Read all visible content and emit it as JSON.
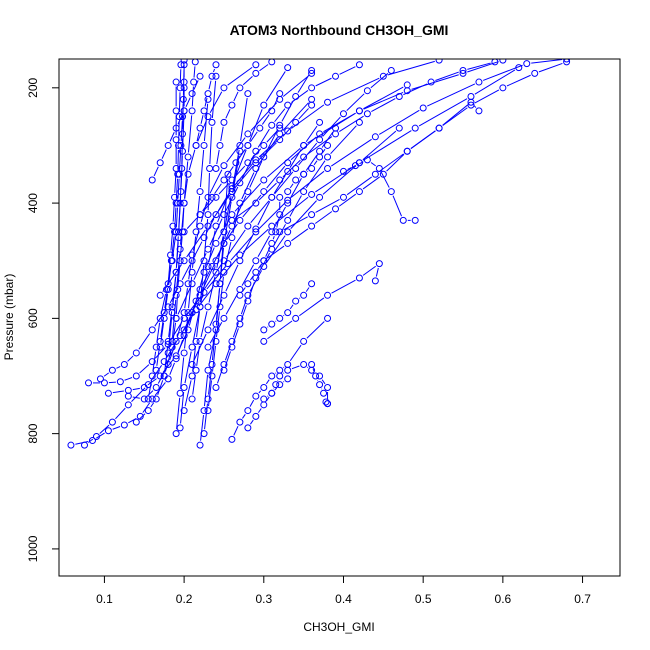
{
  "chart_data": {
    "type": "line",
    "title": "ATOM3 Northbound CH3OH_GMI",
    "xlabel": "CH3OH_GMI",
    "ylabel": "Pressure (mbar)",
    "xlim": [
      0.043,
      0.747
    ],
    "ylim": [
      1047,
      150
    ],
    "y_reversed": true,
    "grid": false,
    "x_ticks": [
      0.1,
      0.2,
      0.3,
      0.4,
      0.5,
      0.6,
      0.7
    ],
    "x_tick_labels": [
      "0.1",
      "0.2",
      "0.3",
      "0.4",
      "0.5",
      "0.6",
      "0.7"
    ],
    "y_ticks": [
      200,
      400,
      600,
      800,
      1000
    ],
    "y_tick_labels": [
      "200",
      "400",
      "600",
      "800",
      "1000"
    ],
    "series_color": "#0000ff",
    "series": [
      {
        "x": [
          0.058,
          0.085,
          0.105,
          0.125,
          0.145,
          0.16,
          0.18,
          0.19,
          0.2,
          0.21,
          0.22,
          0.235,
          0.25,
          0.27,
          0.3,
          0.33,
          0.37,
          0.42,
          0.48,
          0.55,
          0.6
        ],
        "y": [
          820,
          812,
          795,
          785,
          770,
          740,
          705,
          670,
          630,
          590,
          550,
          510,
          470,
          430,
          380,
          330,
          280,
          240,
          205,
          175,
          152
        ]
      },
      {
        "x": [
          0.075,
          0.09,
          0.11,
          0.13,
          0.155,
          0.175,
          0.195,
          0.215,
          0.24,
          0.27,
          0.31,
          0.36,
          0.42,
          0.49,
          0.56,
          0.62
        ],
        "y": [
          820,
          805,
          780,
          750,
          715,
          675,
          630,
          585,
          540,
          490,
          440,
          385,
          330,
          270,
          215,
          165
        ]
      },
      {
        "x": [
          0.08,
          0.1,
          0.12,
          0.14,
          0.16,
          0.18,
          0.2,
          0.225,
          0.255,
          0.29,
          0.33,
          0.38,
          0.44,
          0.5,
          0.57,
          0.63,
          0.68
        ],
        "y": [
          712,
          712,
          710,
          700,
          675,
          645,
          600,
          555,
          505,
          450,
          395,
          340,
          285,
          235,
          190,
          158,
          150
        ]
      },
      {
        "x": [
          0.095,
          0.11,
          0.125,
          0.14,
          0.16,
          0.18,
          0.195,
          0.21,
          0.225,
          0.24,
          0.26,
          0.29,
          0.33,
          0.38,
          0.45,
          0.52
        ],
        "y": [
          705,
          690,
          680,
          660,
          620,
          580,
          540,
          500,
          460,
          420,
          375,
          325,
          275,
          225,
          180,
          152
        ]
      },
      {
        "x": [
          0.105,
          0.13,
          0.15,
          0.17,
          0.19,
          0.205,
          0.215,
          0.225,
          0.24,
          0.26,
          0.3,
          0.35,
          0.42,
          0.48
        ],
        "y": [
          730,
          725,
          720,
          700,
          665,
          620,
          570,
          520,
          470,
          420,
          360,
          300,
          240,
          195
        ]
      },
      {
        "x": [
          0.13,
          0.15,
          0.165,
          0.18,
          0.19,
          0.2,
          0.205,
          0.21,
          0.22,
          0.23,
          0.25,
          0.28,
          0.32,
          0.36
        ],
        "y": [
          735,
          740,
          720,
          680,
          640,
          590,
          540,
          490,
          440,
          390,
          335,
          280,
          220,
          175
        ]
      },
      {
        "x": [
          0.14,
          0.155,
          0.165,
          0.175,
          0.185,
          0.19,
          0.192,
          0.195,
          0.198,
          0.2,
          0.205,
          0.215,
          0.23,
          0.25,
          0.29
        ],
        "y": [
          780,
          760,
          740,
          700,
          650,
          600,
          550,
          500,
          450,
          400,
          350,
          300,
          250,
          200,
          160
        ]
      },
      {
        "x": [
          0.155,
          0.16,
          0.165,
          0.17,
          0.178,
          0.185,
          0.19,
          0.192,
          0.194,
          0.196,
          0.198,
          0.2
        ],
        "y": [
          740,
          700,
          650,
          600,
          550,
          500,
          450,
          400,
          350,
          300,
          250,
          200
        ]
      },
      {
        "x": [
          0.165,
          0.17,
          0.175,
          0.18,
          0.183,
          0.186,
          0.188,
          0.19,
          0.19,
          0.19,
          0.19
        ],
        "y": [
          690,
          640,
          590,
          540,
          490,
          440,
          390,
          340,
          290,
          240,
          190
        ]
      },
      {
        "x": [
          0.17,
          0.175,
          0.18,
          0.184,
          0.188,
          0.19,
          0.192,
          0.193,
          0.194,
          0.195,
          0.196
        ],
        "y": [
          650,
          600,
          550,
          500,
          450,
          400,
          350,
          300,
          250,
          200,
          160
        ]
      },
      {
        "x": [
          0.175,
          0.18,
          0.185,
          0.19,
          0.193,
          0.195,
          0.197,
          0.198,
          0.199,
          0.2
        ],
        "y": [
          700,
          640,
          580,
          520,
          460,
          400,
          340,
          280,
          220,
          160
        ]
      },
      {
        "x": [
          0.18,
          0.185,
          0.19,
          0.193,
          0.196,
          0.198,
          0.2,
          0.2,
          0.2
        ],
        "y": [
          660,
          590,
          520,
          450,
          380,
          310,
          240,
          190,
          152
        ]
      },
      {
        "x": [
          0.185,
          0.19,
          0.195,
          0.2,
          0.205,
          0.21,
          0.212,
          0.214
        ],
        "y": [
          640,
          560,
          480,
          400,
          320,
          240,
          190,
          155
        ]
      },
      {
        "x": [
          0.19,
          0.195,
          0.2,
          0.205,
          0.21,
          0.215,
          0.22,
          0.225,
          0.23
        ],
        "y": [
          800,
          730,
          660,
          590,
          520,
          450,
          380,
          300,
          220
        ]
      },
      {
        "x": [
          0.195,
          0.2,
          0.21,
          0.22,
          0.225,
          0.23,
          0.232,
          0.235,
          0.24
        ],
        "y": [
          790,
          720,
          650,
          580,
          500,
          420,
          340,
          260,
          180
        ]
      },
      {
        "x": [
          0.2,
          0.21,
          0.215,
          0.22,
          0.23,
          0.24,
          0.26,
          0.28,
          0.3,
          0.33
        ],
        "y": [
          760,
          700,
          640,
          580,
          510,
          440,
          370,
          300,
          230,
          165
        ]
      },
      {
        "x": [
          0.21,
          0.215,
          0.22,
          0.23,
          0.24,
          0.25,
          0.26,
          0.27,
          0.28
        ],
        "y": [
          740,
          690,
          640,
          580,
          520,
          450,
          380,
          300,
          210
        ]
      },
      {
        "x": [
          0.22,
          0.225,
          0.23,
          0.24,
          0.245,
          0.25,
          0.255
        ],
        "y": [
          820,
          760,
          690,
          620,
          540,
          450,
          350
        ]
      },
      {
        "x": [
          0.225,
          0.23,
          0.235,
          0.24,
          0.245,
          0.25,
          0.26,
          0.27
        ],
        "y": [
          800,
          740,
          680,
          610,
          540,
          470,
          390,
          310
        ]
      },
      {
        "x": [
          0.23,
          0.235,
          0.24,
          0.245,
          0.25,
          0.26,
          0.27,
          0.29,
          0.32,
          0.36
        ],
        "y": [
          760,
          700,
          640,
          580,
          520,
          460,
          400,
          340,
          280,
          220
        ]
      },
      {
        "x": [
          0.24,
          0.25,
          0.26,
          0.27,
          0.28,
          0.3,
          0.33,
          0.37,
          0.42,
          0.47
        ],
        "y": [
          720,
          680,
          640,
          600,
          560,
          510,
          450,
          390,
          330,
          270
        ]
      },
      {
        "x": [
          0.25,
          0.26,
          0.27,
          0.28,
          0.29,
          0.31,
          0.33,
          0.35,
          0.38,
          0.42
        ],
        "y": [
          690,
          650,
          610,
          570,
          530,
          480,
          430,
          380,
          320,
          260
        ]
      },
      {
        "x": [
          0.26,
          0.27,
          0.28,
          0.29,
          0.3,
          0.31,
          0.32,
          0.33,
          0.35,
          0.38
        ],
        "y": [
          810,
          780,
          760,
          735,
          720,
          700,
          690,
          680,
          640,
          600
        ]
      },
      {
        "x": [
          0.28,
          0.29,
          0.3,
          0.31,
          0.32,
          0.33
        ],
        "y": [
          790,
          770,
          750,
          730,
          715,
          705
        ]
      },
      {
        "x": [
          0.3,
          0.31,
          0.315,
          0.32,
          0.33,
          0.35,
          0.36,
          0.37,
          0.38,
          0.38
        ],
        "y": [
          740,
          730,
          715,
          700,
          690,
          680,
          690,
          700,
          720,
          748
        ]
      },
      {
        "x": [
          0.36,
          0.365,
          0.37,
          0.375,
          0.378,
          0.38
        ],
        "y": [
          680,
          700,
          715,
          730,
          745,
          748
        ]
      },
      {
        "x": [
          0.4,
          0.415,
          0.43,
          0.445,
          0.46,
          0.475,
          0.49
        ],
        "y": [
          345,
          335,
          325,
          340,
          380,
          430,
          430
        ]
      },
      {
        "x": [
          0.3,
          0.34,
          0.38,
          0.42,
          0.445,
          0.44
        ],
        "y": [
          640,
          600,
          560,
          530,
          505,
          535
        ]
      },
      {
        "x": [
          0.3,
          0.33,
          0.36,
          0.39,
          0.42,
          0.45,
          0.48,
          0.52,
          0.56,
          0.57
        ],
        "y": [
          500,
          470,
          440,
          410,
          380,
          350,
          310,
          270,
          225,
          240
        ]
      },
      {
        "x": [
          0.32,
          0.36,
          0.4,
          0.44,
          0.48,
          0.52,
          0.56,
          0.6,
          0.64,
          0.68
        ],
        "y": [
          450,
          420,
          390,
          350,
          310,
          270,
          230,
          200,
          175,
          155
        ]
      },
      {
        "x": [
          0.26,
          0.29,
          0.32,
          0.35,
          0.39,
          0.43,
          0.47,
          0.51,
          0.55,
          0.59
        ],
        "y": [
          430,
          400,
          360,
          320,
          280,
          245,
          215,
          190,
          170,
          155
        ]
      },
      {
        "x": [
          0.22,
          0.25,
          0.28,
          0.31,
          0.34,
          0.37,
          0.4,
          0.43,
          0.46
        ],
        "y": [
          560,
          500,
          440,
          390,
          340,
          290,
          245,
          205,
          170
        ]
      },
      {
        "x": [
          0.2,
          0.22,
          0.24,
          0.26,
          0.28,
          0.3,
          0.32,
          0.34,
          0.36
        ],
        "y": [
          620,
          560,
          500,
          440,
          380,
          320,
          265,
          215,
          170
        ]
      },
      {
        "x": [
          0.19,
          0.21,
          0.23,
          0.25,
          0.27,
          0.29,
          0.31,
          0.33,
          0.36,
          0.39,
          0.42
        ],
        "y": [
          600,
          540,
          480,
          420,
          365,
          310,
          265,
          230,
          200,
          180,
          160
        ]
      },
      {
        "x": [
          0.17,
          0.2,
          0.23,
          0.26,
          0.29,
          0.32,
          0.34,
          0.36
        ],
        "y": [
          560,
          500,
          440,
          380,
          330,
          290,
          260,
          230
        ]
      },
      {
        "x": [
          0.21,
          0.23,
          0.25,
          0.27,
          0.29,
          0.31,
          0.33,
          0.35,
          0.37
        ],
        "y": [
          680,
          620,
          560,
          500,
          445,
          390,
          345,
          300,
          260
        ]
      },
      {
        "x": [
          0.23,
          0.25,
          0.27,
          0.29,
          0.31,
          0.33,
          0.35,
          0.37,
          0.39
        ],
        "y": [
          650,
          600,
          550,
          500,
          450,
          400,
          350,
          310,
          270
        ]
      },
      {
        "x": [
          0.2,
          0.22,
          0.24,
          0.26,
          0.28,
          0.3,
          0.32
        ],
        "y": [
          450,
          420,
          390,
          360,
          330,
          300,
          270
        ]
      },
      {
        "x": [
          0.22,
          0.235,
          0.25,
          0.265,
          0.28,
          0.295,
          0.31,
          0.32
        ],
        "y": [
          420,
          390,
          360,
          330,
          300,
          270,
          240,
          210
        ]
      },
      {
        "x": [
          0.27,
          0.28,
          0.29,
          0.3,
          0.31,
          0.315,
          0.32,
          0.32
        ],
        "y": [
          560,
          540,
          520,
          500,
          470,
          450,
          420,
          390
        ]
      },
      {
        "x": [
          0.3,
          0.31,
          0.32,
          0.33,
          0.34,
          0.35,
          0.36
        ],
        "y": [
          620,
          610,
          600,
          590,
          570,
          560,
          540
        ]
      },
      {
        "x": [
          0.33,
          0.34,
          0.35,
          0.36,
          0.37,
          0.38
        ],
        "y": [
          380,
          360,
          350,
          340,
          320,
          300
        ]
      },
      {
        "x": [
          0.16,
          0.17,
          0.18,
          0.19,
          0.2,
          0.21,
          0.22
        ],
        "y": [
          360,
          330,
          300,
          270,
          240,
          210,
          180
        ]
      },
      {
        "x": [
          0.215,
          0.22,
          0.225,
          0.23,
          0.235,
          0.24
        ],
        "y": [
          300,
          270,
          240,
          210,
          180,
          160
        ]
      },
      {
        "x": [
          0.24,
          0.245,
          0.25,
          0.26,
          0.27,
          0.29,
          0.31
        ],
        "y": [
          340,
          300,
          260,
          230,
          200,
          175,
          155
        ]
      }
    ]
  }
}
